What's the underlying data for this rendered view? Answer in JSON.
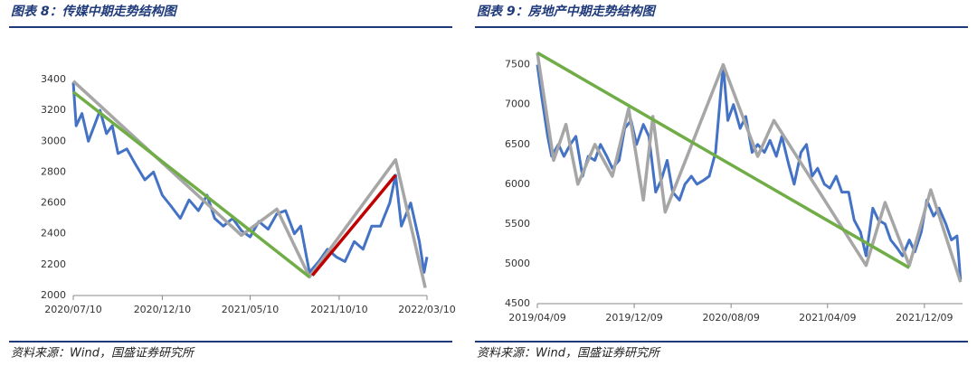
{
  "chart_data": [
    {
      "type": "line",
      "title": "图表 8：传媒中期走势结构图",
      "source": "资料来源：Wind，国盛证券研究所",
      "ylim": [
        2000,
        3400
      ],
      "yticks": [
        2000,
        2200,
        2400,
        2600,
        2800,
        3000,
        3200,
        3400
      ],
      "xlim": [
        "2020/07/10",
        "2022/03/10"
      ],
      "xticks": [
        "2020/07/10",
        "2020/12/10",
        "2021/05/10",
        "2021/10/10",
        "2022/03/10"
      ],
      "series": [
        {
          "color": "#4472c4",
          "width": 3,
          "x": [
            "2020/07/10",
            "2020/07/15",
            "2020/07/25",
            "2020/08/05",
            "2020/08/15",
            "2020/08/25",
            "2020/09/05",
            "2020/09/15",
            "2020/09/25",
            "2020/10/10",
            "2020/10/25",
            "2020/11/10",
            "2020/11/25",
            "2020/12/10",
            "2020/12/25",
            "2021/01/10",
            "2021/01/25",
            "2021/02/10",
            "2021/02/25",
            "2021/03/10",
            "2021/03/25",
            "2021/04/10",
            "2021/04/25",
            "2021/05/10",
            "2021/05/25",
            "2021/06/10",
            "2021/06/25",
            "2021/07/10",
            "2021/07/25",
            "2021/08/05",
            "2021/08/20",
            "2021/09/05",
            "2021/09/20",
            "2021/10/05",
            "2021/10/20",
            "2021/11/05",
            "2021/11/20",
            "2021/12/05",
            "2021/12/20",
            "2022/01/05",
            "2022/01/15",
            "2022/01/25",
            "2022/02/10",
            "2022/02/25",
            "2022/03/05",
            "2022/03/10"
          ],
          "values": [
            3380,
            3100,
            3180,
            3000,
            3100,
            3200,
            3050,
            3100,
            2920,
            2950,
            2850,
            2750,
            2800,
            2650,
            2580,
            2500,
            2620,
            2550,
            2650,
            2500,
            2450,
            2500,
            2420,
            2380,
            2480,
            2430,
            2530,
            2550,
            2400,
            2450,
            2150,
            2220,
            2300,
            2250,
            2220,
            2350,
            2300,
            2450,
            2450,
            2600,
            2780,
            2450,
            2600,
            2350,
            2150,
            2250
          ]
        },
        {
          "color": "#a6a6a6",
          "width": 3.5,
          "x": [
            "2020/07/10",
            "2021/04/25",
            "2021/06/25",
            "2021/08/20",
            "2022/01/15",
            "2022/03/07"
          ],
          "values": [
            3390,
            2390,
            2560,
            2120,
            2880,
            2050
          ]
        },
        {
          "color": "#70ad47",
          "width": 3.5,
          "x": [
            "2020/07/10",
            "2021/08/20"
          ],
          "values": [
            3320,
            2120
          ]
        },
        {
          "color": "#c00000",
          "width": 3.5,
          "x": [
            "2021/08/25",
            "2022/01/15"
          ],
          "values": [
            2130,
            2780
          ]
        }
      ]
    },
    {
      "type": "line",
      "title": "图表 9：房地产中期走势结构图",
      "source": "资料来源：Wind，国盛证券研究所",
      "ylim": [
        4500,
        7700
      ],
      "yticks": [
        4500,
        5000,
        5500,
        6000,
        6500,
        7000,
        7500
      ],
      "xlim": [
        "2019/04/09",
        "2022/03/15"
      ],
      "xticks": [
        "2019/04/09",
        "2019/12/09",
        "2020/08/09",
        "2021/04/09",
        "2021/12/09"
      ],
      "series": [
        {
          "color": "#4472c4",
          "width": 3,
          "x": [
            "2019/04/09",
            "2019/04/20",
            "2019/05/05",
            "2019/05/15",
            "2019/06/01",
            "2019/06/15",
            "2019/07/01",
            "2019/07/15",
            "2019/08/01",
            "2019/08/15",
            "2019/09/01",
            "2019/09/15",
            "2019/10/01",
            "2019/10/15",
            "2019/11/01",
            "2019/11/15",
            "2019/12/01",
            "2019/12/15",
            "2020/01/01",
            "2020/01/15",
            "2020/02/01",
            "2020/02/15",
            "2020/03/01",
            "2020/03/15",
            "2020/04/01",
            "2020/04/15",
            "2020/05/01",
            "2020/05/15",
            "2020/06/01",
            "2020/06/15",
            "2020/07/01",
            "2020/07/20",
            "2020/08/01",
            "2020/08/15",
            "2020/09/01",
            "2020/09/15",
            "2020/10/01",
            "2020/10/15",
            "2020/11/01",
            "2020/11/15",
            "2020/12/01",
            "2020/12/15",
            "2021/01/01",
            "2021/01/15",
            "2021/02/01",
            "2021/02/15",
            "2021/03/01",
            "2021/03/15",
            "2021/04/01",
            "2021/04/15",
            "2021/05/01",
            "2021/05/15",
            "2021/06/01",
            "2021/06/15",
            "2021/07/01",
            "2021/07/15",
            "2021/08/01",
            "2021/08/15",
            "2021/09/01",
            "2021/09/15",
            "2021/10/01",
            "2021/10/15",
            "2021/11/01",
            "2021/11/15",
            "2021/12/01",
            "2021/12/15",
            "2022/01/01",
            "2022/01/15",
            "2022/02/01",
            "2022/02/15",
            "2022/03/01",
            "2022/03/10"
          ],
          "values": [
            7500,
            7100,
            6600,
            6350,
            6500,
            6350,
            6500,
            6600,
            6100,
            6350,
            6300,
            6500,
            6350,
            6200,
            6300,
            6700,
            6800,
            6500,
            6750,
            6600,
            5900,
            6050,
            6300,
            5900,
            5800,
            6000,
            6100,
            6000,
            6050,
            6100,
            6400,
            7500,
            6800,
            7000,
            6700,
            6850,
            6400,
            6500,
            6400,
            6550,
            6350,
            6600,
            6250,
            6000,
            6400,
            6500,
            6100,
            6200,
            6000,
            5950,
            6100,
            5900,
            5900,
            5550,
            5400,
            5100,
            5700,
            5550,
            5500,
            5300,
            5200,
            5100,
            5300,
            5150,
            5400,
            5800,
            5600,
            5700,
            5500,
            5300,
            5350,
            4800
          ]
        },
        {
          "color": "#a6a6a6",
          "width": 3.5,
          "x": [
            "2019/04/09",
            "2019/05/20",
            "2019/06/20",
            "2019/07/20",
            "2019/09/01",
            "2019/10/15",
            "2019/11/25",
            "2020/01/01",
            "2020/01/25",
            "2020/02/25",
            "2020/07/20",
            "2020/10/15",
            "2020/11/25",
            "2021/07/15",
            "2021/09/01",
            "2021/11/01",
            "2021/12/25",
            "2022/03/10"
          ],
          "values": [
            7650,
            6300,
            6750,
            6000,
            6500,
            6100,
            6950,
            5800,
            6850,
            5650,
            7500,
            6350,
            6800,
            4980,
            5770,
            4980,
            5930,
            4770
          ]
        },
        {
          "color": "#70ad47",
          "width": 3.5,
          "x": [
            "2019/04/09",
            "2021/11/01"
          ],
          "values": [
            7650,
            4950
          ]
        }
      ]
    }
  ]
}
